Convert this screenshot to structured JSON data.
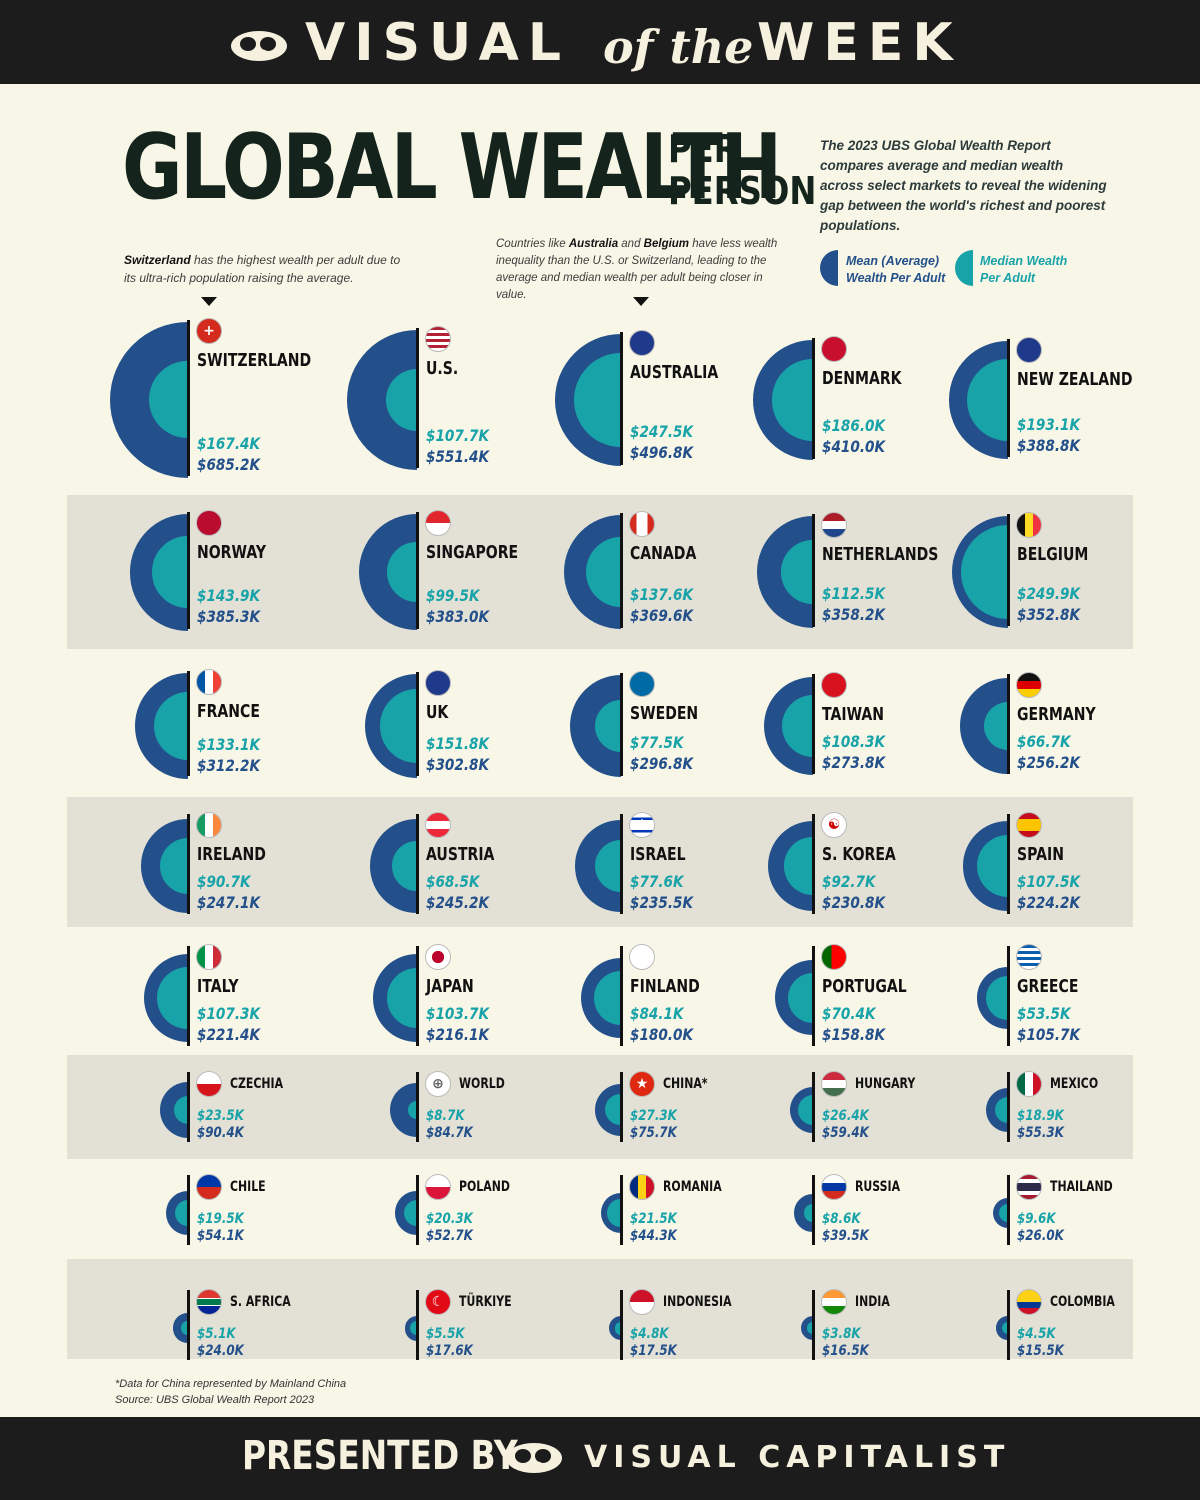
{
  "header": {
    "w1": "VISUAL",
    "w2": "of the",
    "w3": "WEEK"
  },
  "title": {
    "main": "GLOBAL WEALTH",
    "sub1": "PER",
    "sub2": "PERSON"
  },
  "intro": "The 2023 UBS Global Wealth Report compares average and median wealth across select markets to reveal the widening gap between the world's richest and poorest populations.",
  "notes": {
    "left_bold": "Switzerland",
    "left_rest": " has the highest wealth per adult due to its ultra-rich population raising the average.",
    "mid_a": "Countries like ",
    "mid_b1": "Australia",
    "mid_c": " and ",
    "mid_b2": "Belgium",
    "mid_d": " have less wealth inequality than the U.S. or Switzerland, leading to the average and median wealth per adult being closer in value."
  },
  "legend": {
    "mean_l1": "Mean (Average)",
    "mean_l2": "Wealth Per Adult",
    "median_l1": "Median Wealth",
    "median_l2": "Per Adult"
  },
  "colors": {
    "mean": "#23508a",
    "median": "#18a3a9",
    "band": "#e3e1d5",
    "background": "#f8f6e7"
  },
  "chart_data": {
    "type": "nested-semicircle",
    "series": [
      {
        "name": "Mean (Average) Wealth Per Adult"
      },
      {
        "name": "Median Wealth Per Adult"
      }
    ],
    "countries": [
      {
        "name": "SWITZERLAND",
        "flag": "ch",
        "median": "$167.4K",
        "mean": "$685.2K",
        "median_k": 167.4,
        "mean_k": 685.2
      },
      {
        "name": "U.S.",
        "flag": "us",
        "median": "$107.7K",
        "mean": "$551.4K",
        "median_k": 107.7,
        "mean_k": 551.4
      },
      {
        "name": "AUSTRALIA",
        "flag": "au",
        "median": "$247.5K",
        "mean": "$496.8K",
        "median_k": 247.5,
        "mean_k": 496.8
      },
      {
        "name": "DENMARK",
        "flag": "dk",
        "median": "$186.0K",
        "mean": "$410.0K",
        "median_k": 186.0,
        "mean_k": 410.0
      },
      {
        "name": "NEW ZEALAND",
        "flag": "nz",
        "median": "$193.1K",
        "mean": "$388.8K",
        "median_k": 193.1,
        "mean_k": 388.8
      },
      {
        "name": "NORWAY",
        "flag": "no",
        "median": "$143.9K",
        "mean": "$385.3K",
        "median_k": 143.9,
        "mean_k": 385.3
      },
      {
        "name": "SINGAPORE",
        "flag": "sg",
        "median": "$99.5K",
        "mean": "$383.0K",
        "median_k": 99.5,
        "mean_k": 383.0
      },
      {
        "name": "CANADA",
        "flag": "ca",
        "median": "$137.6K",
        "mean": "$369.6K",
        "median_k": 137.6,
        "mean_k": 369.6
      },
      {
        "name": "NETHERLANDS",
        "flag": "nl",
        "median": "$112.5K",
        "mean": "$358.2K",
        "median_k": 112.5,
        "mean_k": 358.2
      },
      {
        "name": "BELGIUM",
        "flag": "be",
        "median": "$249.9K",
        "mean": "$352.8K",
        "median_k": 249.9,
        "mean_k": 352.8
      },
      {
        "name": "FRANCE",
        "flag": "fr",
        "median": "$133.1K",
        "mean": "$312.2K",
        "median_k": 133.1,
        "mean_k": 312.2
      },
      {
        "name": "UK",
        "flag": "uk",
        "median": "$151.8K",
        "mean": "$302.8K",
        "median_k": 151.8,
        "mean_k": 302.8
      },
      {
        "name": "SWEDEN",
        "flag": "se",
        "median": "$77.5K",
        "mean": "$296.8K",
        "median_k": 77.5,
        "mean_k": 296.8
      },
      {
        "name": "TAIWAN",
        "flag": "tw",
        "median": "$108.3K",
        "mean": "$273.8K",
        "median_k": 108.3,
        "mean_k": 273.8
      },
      {
        "name": "GERMANY",
        "flag": "de",
        "median": "$66.7K",
        "mean": "$256.2K",
        "median_k": 66.7,
        "mean_k": 256.2
      },
      {
        "name": "IRELAND",
        "flag": "ie",
        "median": "$90.7K",
        "mean": "$247.1K",
        "median_k": 90.7,
        "mean_k": 247.1
      },
      {
        "name": "AUSTRIA",
        "flag": "at",
        "median": "$68.5K",
        "mean": "$245.2K",
        "median_k": 68.5,
        "mean_k": 245.2
      },
      {
        "name": "ISRAEL",
        "flag": "il",
        "median": "$77.6K",
        "mean": "$235.5K",
        "median_k": 77.6,
        "mean_k": 235.5
      },
      {
        "name": "S. KOREA",
        "flag": "kr",
        "median": "$92.7K",
        "mean": "$230.8K",
        "median_k": 92.7,
        "mean_k": 230.8
      },
      {
        "name": "SPAIN",
        "flag": "es",
        "median": "$107.5K",
        "mean": "$224.2K",
        "median_k": 107.5,
        "mean_k": 224.2
      },
      {
        "name": "ITALY",
        "flag": "it",
        "median": "$107.3K",
        "mean": "$221.4K",
        "median_k": 107.3,
        "mean_k": 221.4
      },
      {
        "name": "JAPAN",
        "flag": "jp",
        "median": "$103.7K",
        "mean": "$216.1K",
        "median_k": 103.7,
        "mean_k": 216.1
      },
      {
        "name": "FINLAND",
        "flag": "fi",
        "median": "$84.1K",
        "mean": "$180.0K",
        "median_k": 84.1,
        "mean_k": 180.0
      },
      {
        "name": "PORTUGAL",
        "flag": "pt",
        "median": "$70.4K",
        "mean": "$158.8K",
        "median_k": 70.4,
        "mean_k": 158.8
      },
      {
        "name": "GREECE",
        "flag": "gr",
        "median": "$53.5K",
        "mean": "$105.7K",
        "median_k": 53.5,
        "mean_k": 105.7
      },
      {
        "name": "CZECHIA",
        "flag": "cz",
        "median": "$23.5K",
        "mean": "$90.4K",
        "median_k": 23.5,
        "mean_k": 90.4
      },
      {
        "name": "WORLD",
        "flag": "world",
        "median": "$8.7K",
        "mean": "$84.7K",
        "median_k": 8.7,
        "mean_k": 84.7
      },
      {
        "name": "CHINA*",
        "flag": "cn",
        "median": "$27.3K",
        "mean": "$75.7K",
        "median_k": 27.3,
        "mean_k": 75.7
      },
      {
        "name": "HUNGARY",
        "flag": "hu",
        "median": "$26.4K",
        "mean": "$59.4K",
        "median_k": 26.4,
        "mean_k": 59.4
      },
      {
        "name": "MEXICO",
        "flag": "mx",
        "median": "$18.9K",
        "mean": "$55.3K",
        "median_k": 18.9,
        "mean_k": 55.3
      },
      {
        "name": "CHILE",
        "flag": "cl",
        "median": "$19.5K",
        "mean": "$54.1K",
        "median_k": 19.5,
        "mean_k": 54.1
      },
      {
        "name": "POLAND",
        "flag": "pl",
        "median": "$20.3K",
        "mean": "$52.7K",
        "median_k": 20.3,
        "mean_k": 52.7
      },
      {
        "name": "ROMANIA",
        "flag": "ro",
        "median": "$21.5K",
        "mean": "$44.3K",
        "median_k": 21.5,
        "mean_k": 44.3
      },
      {
        "name": "RUSSIA",
        "flag": "ru",
        "median": "$8.6K",
        "mean": "$39.5K",
        "median_k": 8.6,
        "mean_k": 39.5
      },
      {
        "name": "THAILAND",
        "flag": "th",
        "median": "$9.6K",
        "mean": "$26.0K",
        "median_k": 9.6,
        "mean_k": 26.0
      },
      {
        "name": "S. AFRICA",
        "flag": "za",
        "median": "$5.1K",
        "mean": "$24.0K",
        "median_k": 5.1,
        "mean_k": 24.0
      },
      {
        "name": "TÜRKIYE",
        "flag": "tr",
        "median": "$5.5K",
        "mean": "$17.6K",
        "median_k": 5.5,
        "mean_k": 17.6
      },
      {
        "name": "INDONESIA",
        "flag": "id",
        "median": "$4.8K",
        "mean": "$17.5K",
        "median_k": 4.8,
        "mean_k": 17.5
      },
      {
        "name": "INDIA",
        "flag": "in",
        "median": "$3.8K",
        "mean": "$16.5K",
        "median_k": 3.8,
        "mean_k": 16.5
      },
      {
        "name": "COLOMBIA",
        "flag": "co",
        "median": "$4.5K",
        "mean": "$15.5K",
        "median_k": 4.5,
        "mean_k": 15.5
      }
    ]
  },
  "footnote": {
    "l1": "*Data for China represented by Mainland China",
    "l2": "Source: UBS Global Wealth Report 2023"
  },
  "footer": {
    "presented": "PRESENTED BY",
    "brand": "VISUAL CAPITALIST"
  }
}
